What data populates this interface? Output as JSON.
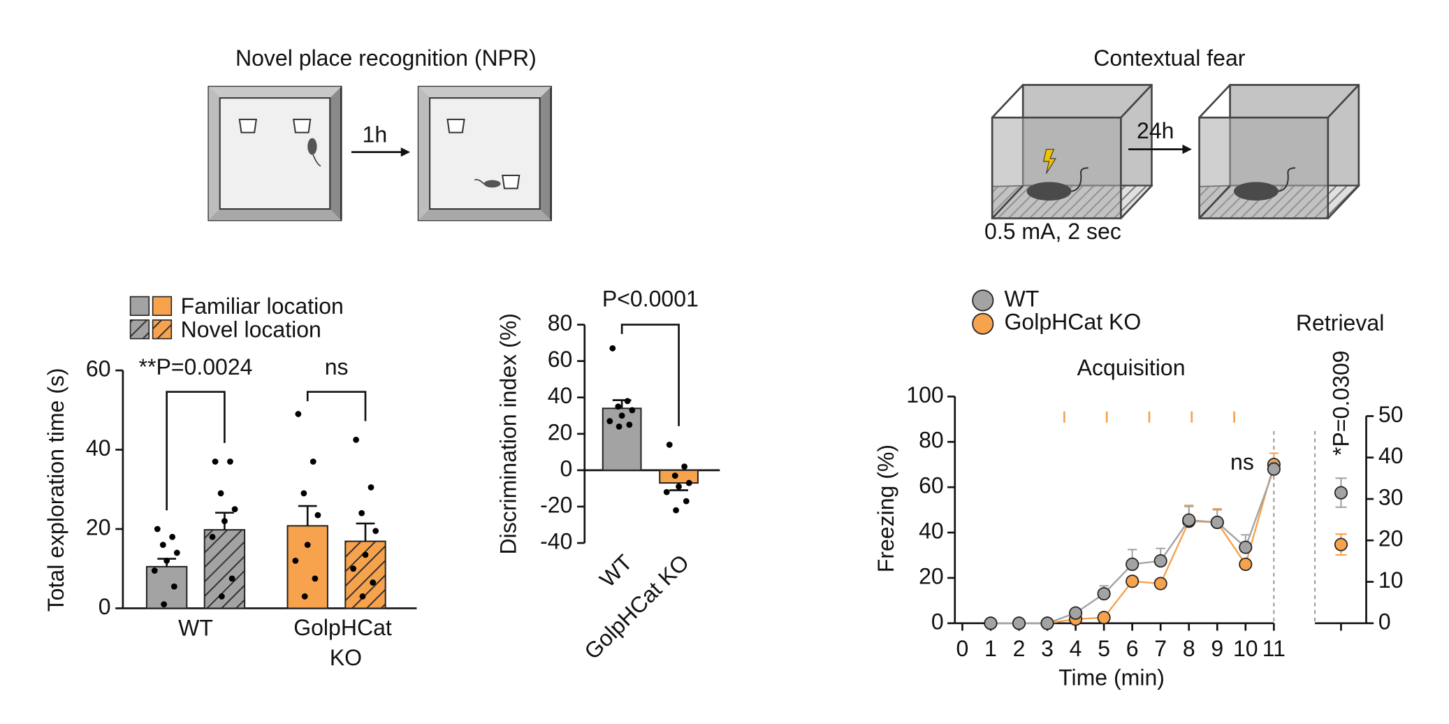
{
  "diagrams": {
    "npr": {
      "title": "Novel place recognition (NPR)",
      "interval": "1h"
    },
    "fear": {
      "title": "Contextual fear",
      "interval": "24h",
      "shock": "0.5 mA, 2 sec"
    }
  },
  "chart_data": [
    {
      "type": "bar",
      "ylabel": "Total exploration time (s)",
      "categories": [
        "WT",
        "GolpHCat KO"
      ],
      "series": [
        {
          "name": "Familiar location",
          "pattern": "solid",
          "colors": [
            "#a3a3a3",
            "#f7a24c"
          ],
          "values": [
            10.5,
            20.8
          ],
          "errors": [
            2,
            5
          ],
          "points": [
            [
              20,
              18,
              16,
              14,
              12,
              9.5,
              5.5,
              1
            ],
            [
              49,
              37,
              29,
              23.5,
              16,
              12,
              7.5,
              3
            ]
          ]
        },
        {
          "name": "Novel location",
          "pattern": "hatch",
          "colors": [
            "#a3a3a3",
            "#f7a24c"
          ],
          "values": [
            19.8,
            16.9
          ],
          "errors": [
            4.3,
            4.5
          ],
          "points": [
            [
              37,
              37,
              29,
              25,
              22,
              18,
              7.5,
              3
            ],
            [
              42.5,
              30.5,
              24,
              19.5,
              13.5,
              10,
              6.5,
              3
            ]
          ]
        }
      ],
      "annotations": [
        "**P=0.0024",
        "ns"
      ],
      "ylim": [
        0,
        60
      ],
      "yticks": [
        0,
        20,
        40,
        60
      ]
    },
    {
      "type": "bar",
      "ylabel": "Discrimination index (%)",
      "categories": [
        "WT",
        "GolpHCat KO"
      ],
      "series": [
        {
          "pattern": "solid",
          "colors": [
            "#a3a3a3",
            "#f7a24c"
          ],
          "values": [
            34,
            -7
          ],
          "errors": [
            4.5,
            4
          ],
          "points": [
            [
              67,
              38,
              35,
              33,
              30,
              27,
              25,
              24
            ],
            [
              14,
              2,
              -3,
              -7,
              -9,
              -12,
              -17,
              -22
            ]
          ]
        }
      ],
      "annotations": [
        "P<0.0001"
      ],
      "ylim": [
        -40,
        80
      ],
      "yticks": [
        -40,
        -20,
        0,
        20,
        40,
        60,
        80
      ]
    },
    {
      "type": "line",
      "title": "Acquisition",
      "xlabel": "Time (min)",
      "ylabel": "Freezing (%)",
      "x": [
        1,
        2,
        3,
        4,
        5,
        6,
        7,
        8,
        9,
        10,
        11
      ],
      "series": [
        {
          "name": "WT",
          "color": "#a3a3a3",
          "values": [
            0,
            0,
            0,
            4.5,
            13,
            26,
            27.5,
            45.5,
            44.5,
            33.5,
            68
          ],
          "errors": [
            0,
            0,
            0,
            1,
            3.5,
            6.5,
            5.5,
            6,
            5.5,
            5.5,
            3
          ]
        },
        {
          "name": "GolpHCat KO",
          "color": "#f7a24c",
          "values": [
            0,
            0,
            0,
            1.8,
            2.5,
            18.5,
            17.5,
            45,
            44.5,
            26,
            70
          ],
          "errors": [
            0,
            0,
            0,
            0.5,
            1,
            1.5,
            1.5,
            7,
            6,
            2,
            5
          ]
        }
      ],
      "shocks": [
        3.6,
        5.1,
        6.6,
        8.1,
        9.6
      ],
      "annotation": "ns",
      "xlim": [
        0,
        11
      ],
      "xticks": [
        0,
        1,
        2,
        3,
        4,
        5,
        6,
        7,
        8,
        9,
        10,
        11
      ],
      "ylim": [
        0,
        100
      ],
      "yticks": [
        0,
        20,
        40,
        60,
        80,
        100
      ]
    },
    {
      "type": "dot",
      "title": "Retrieval",
      "series": [
        {
          "color": "#a3a3a3",
          "values": [
            31.5
          ],
          "errors": [
            3.5
          ]
        },
        {
          "color": "#f7a24c",
          "values": [
            19
          ],
          "errors": [
            2.5
          ]
        }
      ],
      "annotation": "*P=0.0309",
      "y2lim": [
        0,
        50
      ],
      "y2ticks": [
        0,
        10,
        20,
        30,
        40,
        50
      ]
    }
  ]
}
